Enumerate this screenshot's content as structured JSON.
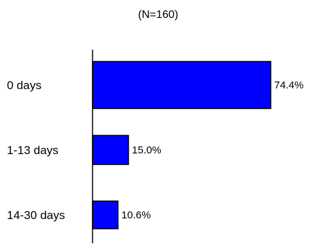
{
  "chart_data": {
    "type": "bar",
    "orientation": "horizontal",
    "title": "",
    "subtitle": "(N=160)",
    "categories": [
      "0 days",
      "1-13 days",
      "14-30 days"
    ],
    "values": [
      74.4,
      15.0,
      10.6
    ],
    "value_labels": [
      "74.4%",
      "15.0%",
      "10.6%"
    ],
    "xlim": [
      0,
      100
    ],
    "grid": false,
    "legend": "none",
    "bar_color": "#0000ff",
    "bar_outline_color": "#000000"
  }
}
